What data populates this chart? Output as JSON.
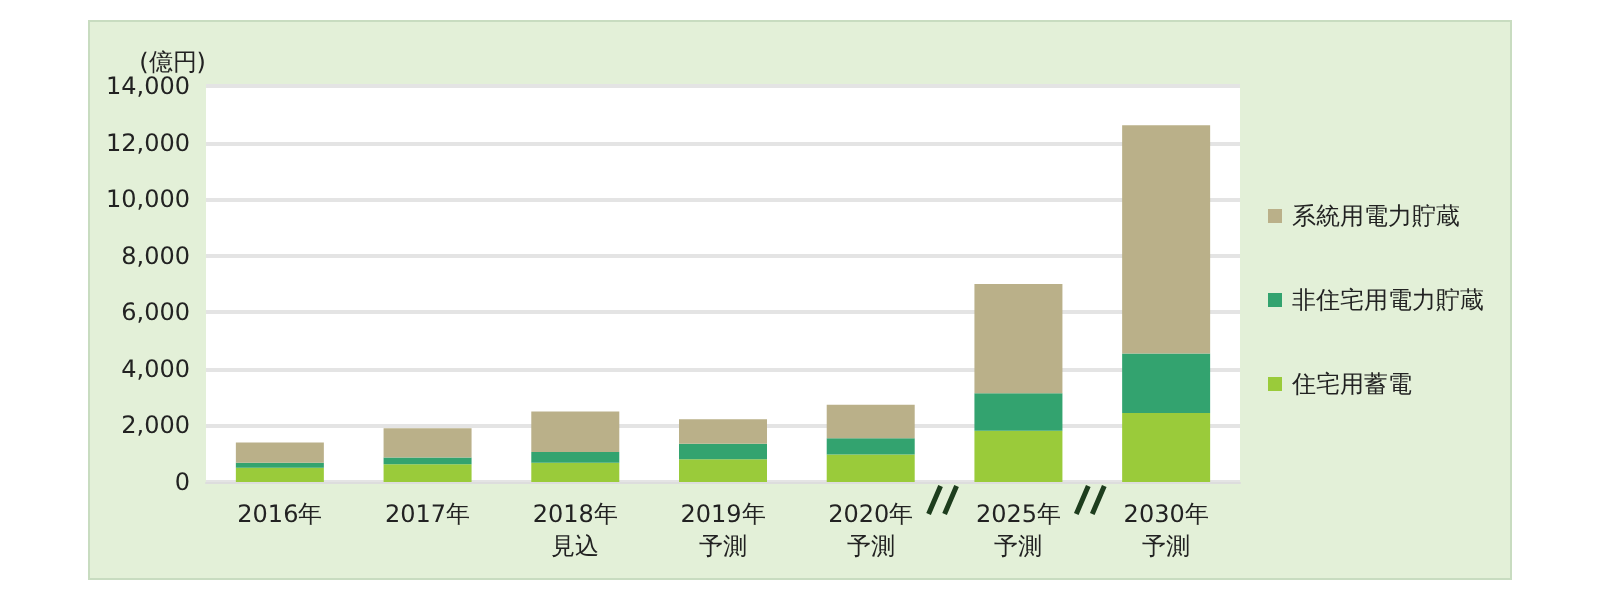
{
  "chart_data": {
    "type": "bar",
    "stacked": true,
    "ylabel": "(億円)",
    "categories": [
      "2016年",
      "2017年",
      "2018年見込",
      "2019年予測",
      "2020年予測",
      "2025年予測",
      "2030年予測"
    ],
    "series": [
      {
        "name": "住宅用蓄電",
        "color": "#9acb3a",
        "values": [
          500,
          630,
          680,
          800,
          970,
          1810,
          2440
        ]
      },
      {
        "name": "非住宅用電力貯蔵",
        "color": "#33a36f",
        "values": [
          180,
          240,
          380,
          550,
          580,
          1330,
          2100
        ]
      },
      {
        "name": "系統用電力貯蔵",
        "color": "#bab089",
        "values": [
          720,
          1030,
          1430,
          870,
          1180,
          3860,
          8070
        ]
      }
    ],
    "ylim": [
      0,
      14000
    ],
    "yticks": [
      0,
      {
        "value": 2000,
        "label": "2,000"
      },
      {
        "value": 4000,
        "label": "4,000"
      },
      {
        "value": 6000,
        "label": "6,000"
      },
      {
        "value": 8000,
        "label": "8,000"
      },
      {
        "value": 10000,
        "label": "10,000"
      },
      {
        "value": 12000,
        "label": "12,000"
      },
      {
        "value": 14000,
        "label": "14,000"
      }
    ],
    "grid": "y",
    "legend": "right"
  }
}
